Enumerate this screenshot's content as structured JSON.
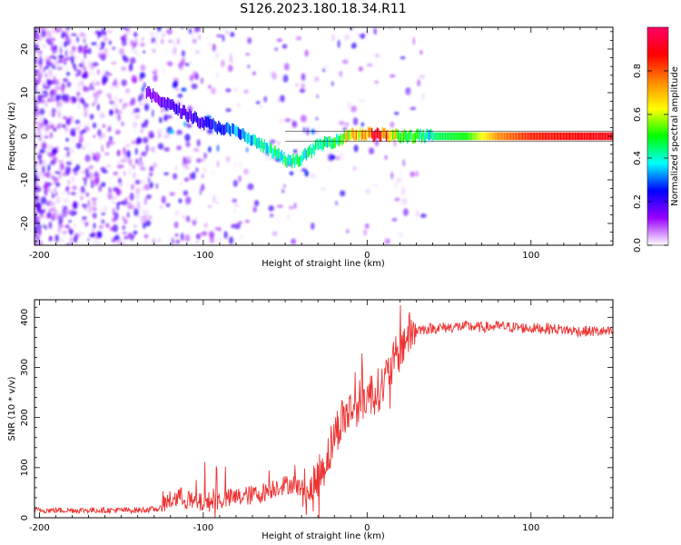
{
  "title": "S126.2023.180.18.34.R11",
  "chart_data": [
    {
      "type": "heatmap",
      "title": "S126.2023.180.18.34.R11",
      "xlabel": "Height of straight line (km)",
      "ylabel": "Frequency (Hz)",
      "xlim": [
        -203,
        150
      ],
      "ylim": [
        -25,
        25
      ],
      "xticks": [
        -200,
        -100,
        0,
        100
      ],
      "yticks": [
        -20,
        -10,
        0,
        10,
        20
      ],
      "colorbar": {
        "label": "Normalized spectral amplitude",
        "range": [
          0,
          1
        ],
        "ticks": [
          0.0,
          0.2,
          0.4,
          0.6,
          0.8
        ],
        "colors": [
          "#ffffff",
          "#9900ff",
          "#0000ff",
          "#00ffff",
          "#00ff00",
          "#ffff00",
          "#ff8800",
          "#ff0000",
          "#ff0066"
        ]
      },
      "ridge_track": {
        "x": [
          -135,
          -120,
          -100,
          -80,
          -60,
          -48,
          -40,
          -30,
          -20,
          -10,
          0,
          10,
          20,
          40,
          60,
          80,
          100,
          150
        ],
        "freq": [
          10,
          7,
          3,
          1,
          -3,
          -6,
          -5,
          -2,
          -1,
          0.5,
          0.5,
          0.3,
          0,
          0,
          0,
          0,
          0,
          0
        ],
        "amplitude": [
          0.15,
          0.2,
          0.25,
          0.35,
          0.45,
          0.5,
          0.45,
          0.45,
          0.5,
          0.7,
          0.85,
          0.9,
          0.55,
          0.45,
          0.5,
          0.75,
          0.85,
          0.9
        ]
      }
    },
    {
      "type": "line",
      "xlabel": "Height of straight line (km)",
      "ylabel": "SNR (10 * v/v)",
      "xlim": [
        -203,
        150
      ],
      "ylim": [
        0,
        435
      ],
      "xticks": [
        -200,
        -100,
        0,
        100
      ],
      "yticks": [
        0,
        100,
        200,
        300,
        400
      ],
      "series": [
        {
          "name": "SNR",
          "color": "#ee3333",
          "x": [
            -203,
            -180,
            -160,
            -140,
            -125,
            -115,
            -105,
            -95,
            -85,
            -75,
            -65,
            -55,
            -45,
            -35,
            -30,
            -25,
            -20,
            -15,
            -10,
            -5,
            0,
            5,
            10,
            15,
            20,
            25,
            30,
            40,
            50,
            60,
            70,
            80,
            90,
            100,
            110,
            120,
            130,
            140,
            150
          ],
          "y": [
            15,
            15,
            15,
            15,
            18,
            35,
            20,
            25,
            30,
            35,
            40,
            55,
            60,
            40,
            80,
            115,
            165,
            200,
            215,
            230,
            245,
            250,
            265,
            300,
            335,
            365,
            375,
            378,
            380,
            382,
            380,
            382,
            380,
            378,
            378,
            375,
            372,
            372,
            370
          ]
        }
      ]
    }
  ]
}
